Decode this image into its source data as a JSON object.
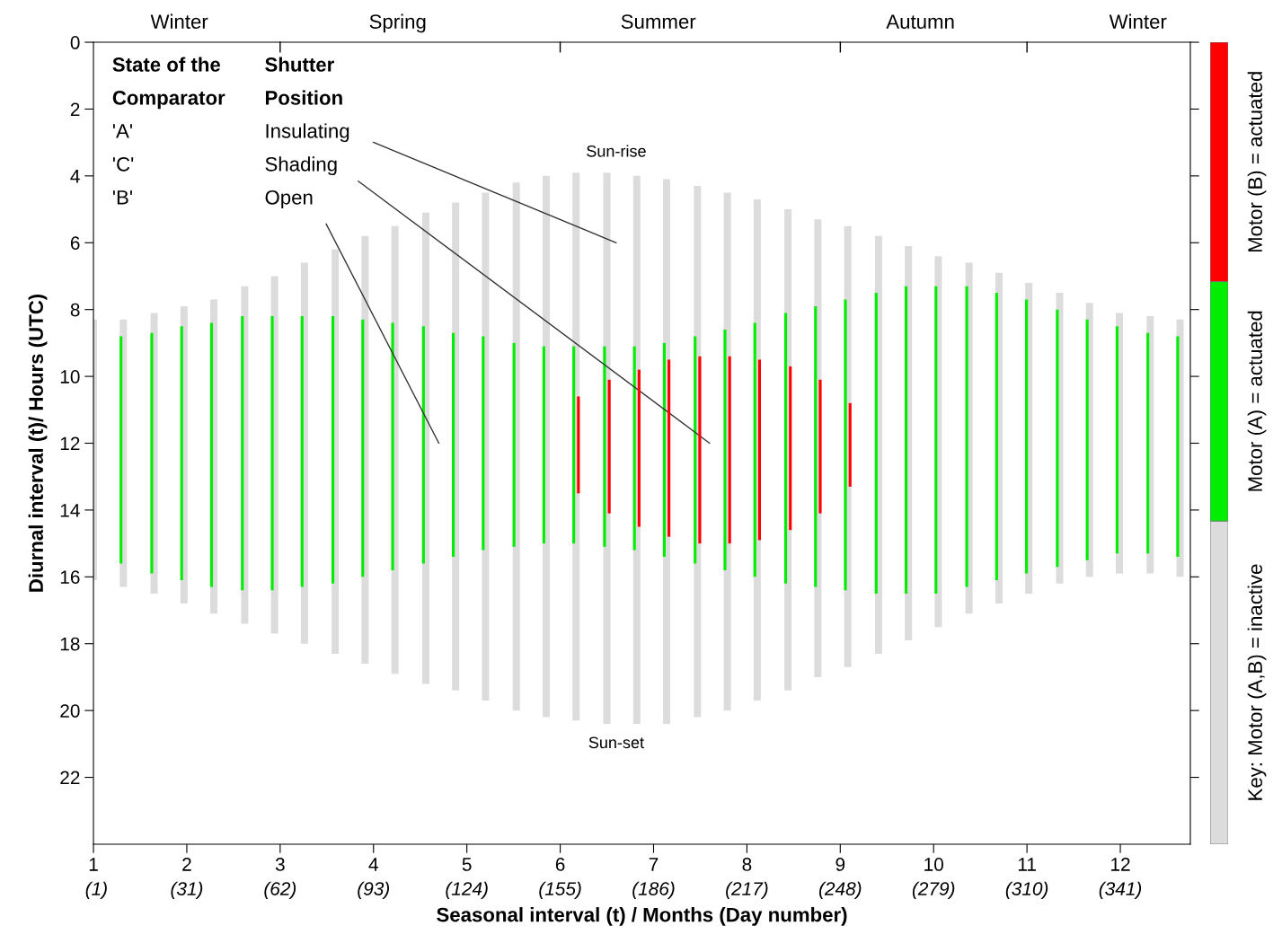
{
  "chart_data": {
    "type": "bar",
    "xlabel": "Seasonal interval (t) / Months (Day number)",
    "ylabel": "Diurnal interval (t)/ Hours (UTC)",
    "x": [
      1.0,
      1.32,
      1.65,
      1.97,
      2.29,
      2.62,
      2.94,
      3.26,
      3.59,
      3.91,
      4.23,
      4.56,
      4.88,
      5.2,
      5.53,
      5.85,
      6.17,
      6.5,
      6.82,
      7.14,
      7.47,
      7.79,
      8.11,
      8.44,
      8.76,
      9.08,
      9.41,
      9.73,
      10.05,
      10.38,
      10.7,
      11.02,
      11.35,
      11.67,
      11.99,
      12.32,
      12.64
    ],
    "series": [
      {
        "name": "Key: Motor (A,B) = inactive",
        "color": "#dcdcdc",
        "base": [
          8.3,
          8.3,
          8.1,
          7.9,
          7.7,
          7.3,
          7.0,
          6.6,
          6.2,
          5.8,
          5.5,
          5.1,
          4.8,
          4.5,
          4.2,
          4.0,
          3.9,
          3.9,
          4.0,
          4.1,
          4.3,
          4.5,
          4.7,
          5.0,
          5.3,
          5.5,
          5.8,
          6.1,
          6.4,
          6.6,
          6.9,
          7.2,
          7.5,
          7.8,
          8.1,
          8.2,
          8.3
        ],
        "values": [
          7.8,
          8.0,
          8.4,
          8.9,
          9.4,
          10.1,
          10.7,
          11.4,
          12.1,
          12.8,
          13.4,
          14.1,
          14.6,
          15.2,
          15.8,
          16.2,
          16.4,
          16.5,
          16.4,
          16.3,
          15.9,
          15.5,
          15.0,
          14.4,
          13.7,
          13.2,
          12.5,
          11.8,
          11.1,
          10.5,
          9.9,
          9.3,
          8.7,
          8.2,
          7.8,
          7.7,
          7.7
        ]
      },
      {
        "name": "Motor (A) = actuated",
        "color": "#00ee00",
        "base": [
          null,
          8.8,
          8.7,
          8.5,
          8.4,
          8.2,
          8.2,
          8.2,
          8.2,
          8.3,
          8.4,
          8.5,
          8.7,
          8.8,
          9.0,
          9.1,
          9.1,
          9.1,
          9.1,
          9.0,
          8.8,
          8.6,
          8.4,
          8.1,
          7.9,
          7.7,
          7.5,
          7.3,
          7.3,
          7.3,
          7.5,
          7.7,
          8.0,
          8.3,
          8.5,
          8.7,
          8.8
        ],
        "values": [
          null,
          6.8,
          7.2,
          7.6,
          7.9,
          8.2,
          8.2,
          8.1,
          8.0,
          7.7,
          7.4,
          7.1,
          6.7,
          6.4,
          6.1,
          5.9,
          5.9,
          6.0,
          6.1,
          6.4,
          6.8,
          7.2,
          7.6,
          8.1,
          8.4,
          8.7,
          9.0,
          9.2,
          9.2,
          9.0,
          8.6,
          8.2,
          7.7,
          7.2,
          6.8,
          6.6,
          6.6
        ]
      },
      {
        "name": "Motor (B) = actuated",
        "color": "#ff0000",
        "base": [
          null,
          null,
          null,
          null,
          null,
          null,
          null,
          null,
          null,
          null,
          null,
          null,
          null,
          null,
          null,
          null,
          10.6,
          10.1,
          9.8,
          9.5,
          9.4,
          9.4,
          9.5,
          9.7,
          10.1,
          10.8,
          null,
          null,
          null,
          null,
          null,
          null,
          null,
          null,
          null,
          null,
          null
        ],
        "values": [
          null,
          null,
          null,
          null,
          null,
          null,
          null,
          null,
          null,
          null,
          null,
          null,
          null,
          null,
          null,
          null,
          2.9,
          4.0,
          4.7,
          5.3,
          5.6,
          5.6,
          5.4,
          4.9,
          4.0,
          2.5,
          null,
          null,
          null,
          null,
          null,
          null,
          null,
          null,
          null,
          null,
          null
        ]
      }
    ],
    "xlim": [
      1,
      12.75
    ],
    "xticks": [
      1,
      2,
      3,
      4,
      5,
      6,
      7,
      8,
      9,
      10,
      11,
      12
    ],
    "x2lim": [
      0,
      364.25
    ],
    "x2ticks": [
      {
        "value": 1,
        "label": "(1)"
      },
      {
        "value": 31,
        "label": "(31)"
      },
      {
        "value": 62,
        "label": "(62)"
      },
      {
        "value": 93,
        "label": "(93)"
      },
      {
        "value": 124,
        "label": "(124)"
      },
      {
        "value": 155,
        "label": "(155)"
      },
      {
        "value": 186,
        "label": "(186)"
      },
      {
        "value": 217,
        "label": "(217)"
      },
      {
        "value": 248,
        "label": "(248)"
      },
      {
        "value": 279,
        "label": "(279)"
      },
      {
        "value": 310,
        "label": "(310)"
      },
      {
        "value": 341,
        "label": "(341)"
      }
    ],
    "ylim": [
      24,
      0
    ],
    "yticks": [
      0,
      2,
      4,
      6,
      8,
      10,
      12,
      14,
      16,
      18,
      20,
      22
    ],
    "legend": "right",
    "annotations": [
      "State of the",
      "Comparator",
      "Shutter",
      "Position",
      "'A'",
      "'C'",
      "'B'",
      "Insulating",
      "Shading",
      "Open",
      "Sun-rise",
      "Sun-set",
      "Winter",
      "Spring",
      "Summer",
      "Autumn",
      "Winter"
    ]
  }
}
